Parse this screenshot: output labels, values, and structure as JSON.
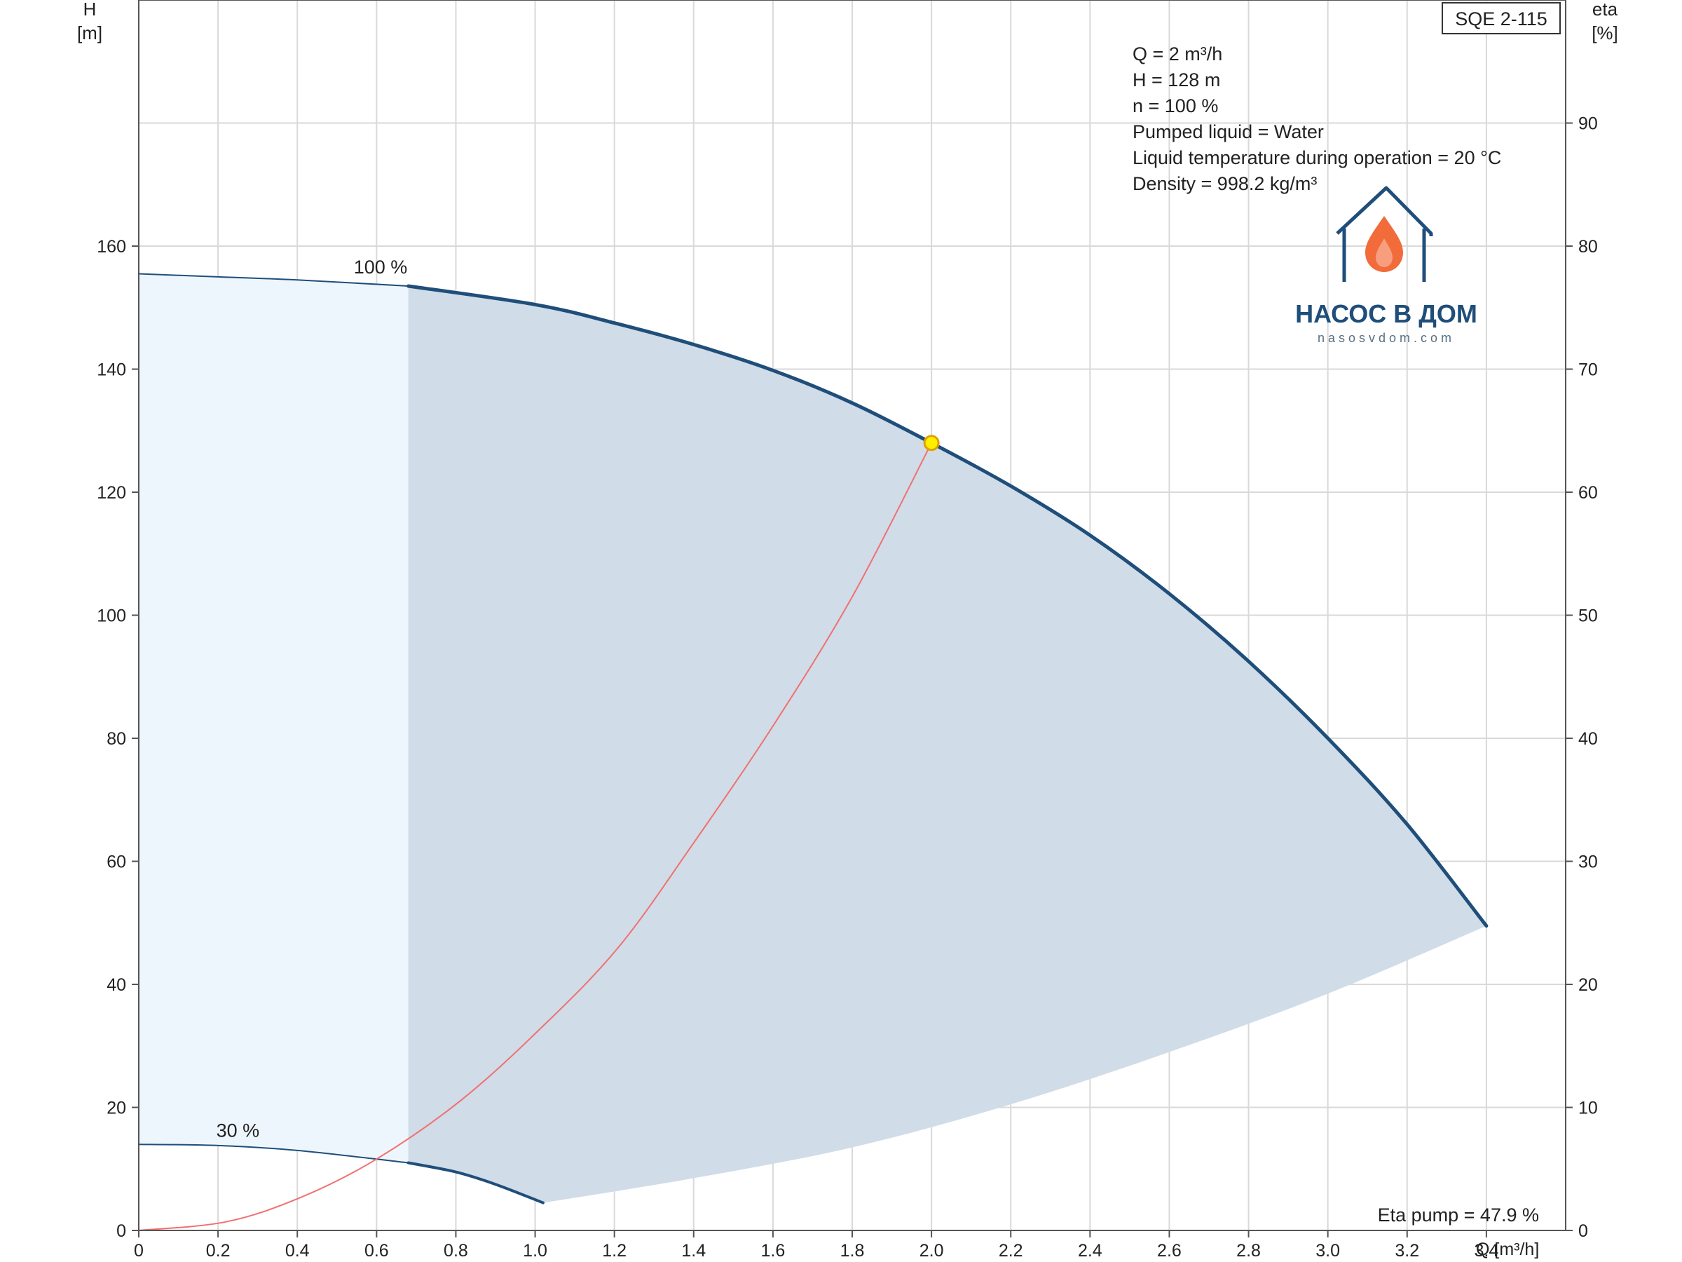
{
  "chart_data": {
    "type": "line",
    "model_label": "SQE 2-115",
    "xlabel": "Q [m³/h]",
    "ylabel_left": [
      "H",
      "[m]"
    ],
    "ylabel_right": [
      "eta",
      "[%]"
    ],
    "x_ticks": [
      "0",
      "0.2",
      "0.4",
      "0.6",
      "0.8",
      "1.0",
      "1.2",
      "1.4",
      "1.6",
      "1.8",
      "2.0",
      "2.2",
      "2.4",
      "2.6",
      "2.8",
      "3.0",
      "3.2",
      "3.4"
    ],
    "y_left_ticks": [
      "0",
      "20",
      "40",
      "60",
      "80",
      "100",
      "120",
      "140",
      "160"
    ],
    "y_right_ticks": [
      "0",
      "10",
      "20",
      "30",
      "40",
      "50",
      "60",
      "70",
      "80",
      "90"
    ],
    "xlim": [
      0,
      3.6
    ],
    "ylim_left": [
      0,
      200
    ],
    "ylim_right": [
      0,
      100
    ],
    "grid": true,
    "info_lines": [
      "Q = 2 m³/h",
      "H = 128 m",
      "n = 100 %",
      "Pumped liquid = Water",
      "Liquid temperature during operation = 20 °C",
      "Density = 998.2 kg/m³"
    ],
    "eta_pump_label": "Eta pump = 47.9 %",
    "series": [
      {
        "label": "100 %",
        "axis": "left",
        "color": "#1f4e7a",
        "x": [
          0.0,
          0.2,
          0.4,
          0.68,
          1.0,
          1.2,
          1.4,
          1.6,
          1.8,
          2.0,
          2.2,
          2.4,
          2.6,
          2.8,
          3.0,
          3.2,
          3.4
        ],
        "y": [
          155.5,
          155.0,
          154.5,
          153.5,
          150.5,
          147.5,
          144.0,
          139.8,
          134.5,
          128.0,
          121.0,
          113.0,
          103.5,
          92.5,
          80.0,
          66.0,
          49.5
        ]
      },
      {
        "label": "30 %",
        "axis": "left",
        "color": "#1f4e7a",
        "x": [
          0.0,
          0.2,
          0.4,
          0.68,
          0.8,
          0.9,
          1.02
        ],
        "y": [
          14.0,
          13.8,
          13.0,
          11.0,
          9.5,
          7.5,
          4.5
        ]
      },
      {
        "label": "",
        "axis": "right",
        "color": "#f07070",
        "x": [
          0.0,
          0.22,
          0.41,
          0.6,
          0.81,
          1.01,
          1.21,
          1.4,
          1.6,
          1.8,
          2.0
        ],
        "y": [
          0.0,
          0.7,
          2.7,
          5.8,
          10.5,
          16.3,
          23.0,
          31.5,
          41.0,
          51.5,
          64.0
        ]
      }
    ],
    "lower_boundary": {
      "x": [
        1.02,
        1.4,
        1.8,
        2.2,
        2.6,
        3.0,
        3.4
      ],
      "y": [
        4.5,
        8.5,
        13.5,
        20.5,
        29.0,
        38.5,
        49.5
      ]
    },
    "light_region_xmax": 0.68,
    "duty_point": {
      "x": 2.0,
      "y": 128.0,
      "color": "#ffee00"
    }
  },
  "logo": {
    "title": "НАСОС В ДОМ",
    "subtitle": "nasosvdom.com"
  }
}
